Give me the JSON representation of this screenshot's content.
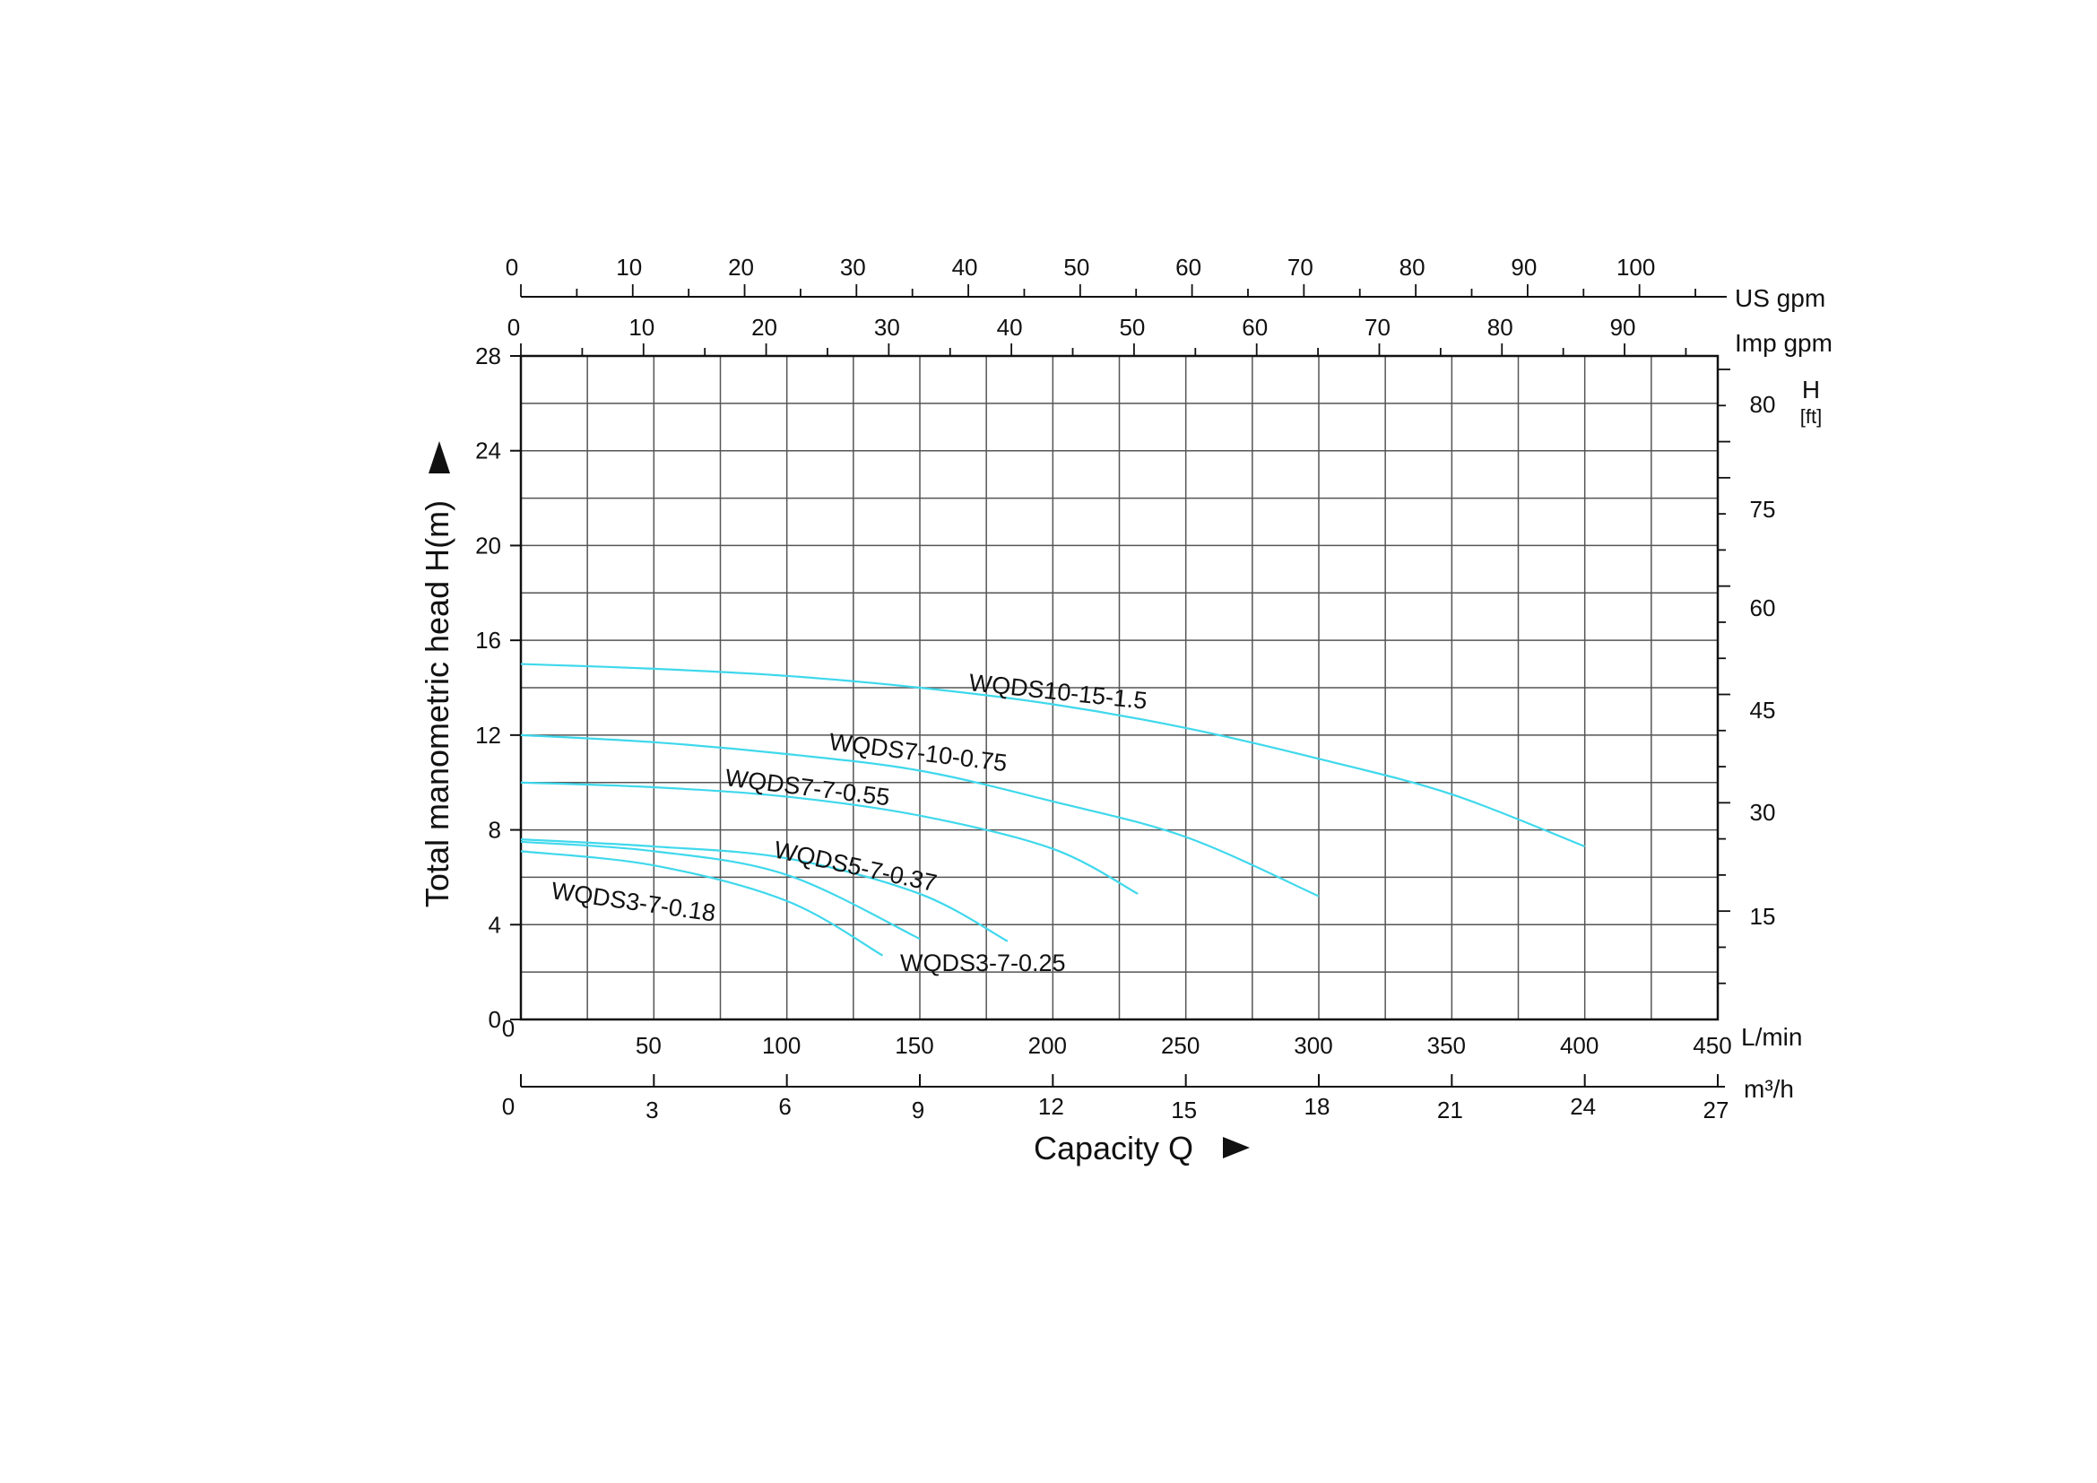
{
  "chart_data": {
    "type": "line",
    "title": "",
    "xlabel": "Capacity Q",
    "ylabel": "Total manometric head H(m)",
    "x_unit": "L/min",
    "y_unit": "m",
    "xlim": [
      0,
      450
    ],
    "ylim": [
      0,
      28
    ],
    "grid": true,
    "colors": {
      "curve": "#3fd8ec",
      "grid": "#555555",
      "axis": "#111111"
    },
    "x_ticks": [
      0,
      50,
      100,
      150,
      200,
      250,
      300,
      350,
      400,
      450
    ],
    "y_ticks": [
      0,
      4,
      8,
      12,
      16,
      20,
      24,
      28
    ],
    "secondary_axes": {
      "m3h": {
        "unit": "m³/h",
        "ticks": [
          "0",
          "3",
          "6",
          "9",
          "12",
          "15",
          "18",
          "21",
          "24",
          "27"
        ],
        "values": [
          0,
          3,
          6,
          9,
          12,
          15,
          18,
          21,
          24,
          27
        ]
      },
      "us_gpm": {
        "unit": "US gpm",
        "ticks": [
          "0",
          "10",
          "20",
          "30",
          "40",
          "50",
          "60",
          "70",
          "80",
          "90",
          "100"
        ],
        "values": [
          0,
          10,
          20,
          30,
          40,
          50,
          60,
          70,
          80,
          90,
          100
        ]
      },
      "imp_gpm": {
        "unit": "Imp gpm",
        "ticks": [
          "0",
          "10",
          "20",
          "30",
          "40",
          "50",
          "60",
          "70",
          "80",
          "90"
        ],
        "values": [
          0,
          10,
          20,
          30,
          40,
          50,
          60,
          70,
          80,
          90
        ]
      },
      "head_ft": {
        "unit_top": "H",
        "unit_bottom": "[ft]",
        "ticks": [
          "15",
          "30",
          "45",
          "60",
          "75",
          "80"
        ],
        "values": [
          15,
          30,
          45,
          60,
          75,
          80
        ]
      }
    },
    "series": [
      {
        "name": "WQDS10-15-1.5",
        "x": [
          0,
          50,
          100,
          150,
          200,
          250,
          300,
          350,
          400
        ],
        "y": [
          15.0,
          14.8,
          14.5,
          14.0,
          13.3,
          12.3,
          11.0,
          9.5,
          7.3
        ]
      },
      {
        "name": "WQDS7-10-0.75",
        "x": [
          0,
          50,
          100,
          150,
          200,
          250,
          300
        ],
        "y": [
          12.0,
          11.7,
          11.2,
          10.5,
          9.2,
          7.7,
          5.2
        ]
      },
      {
        "name": "WQDS7-7-0.55",
        "x": [
          0,
          50,
          100,
          150,
          200,
          232
        ],
        "y": [
          10.0,
          9.8,
          9.4,
          8.6,
          7.2,
          5.3
        ]
      },
      {
        "name": "WQDS5-7-0.37",
        "x": [
          0,
          50,
          100,
          150,
          183
        ],
        "y": [
          7.6,
          7.3,
          6.8,
          5.3,
          3.3
        ]
      },
      {
        "name": "WQDS3-7-0.25",
        "x": [
          0,
          50,
          100,
          150
        ],
        "y": [
          7.5,
          7.1,
          6.1,
          3.4
        ]
      },
      {
        "name": "WQDS3-7-0.18",
        "x": [
          0,
          50,
          100,
          136
        ],
        "y": [
          7.1,
          6.5,
          5.0,
          2.7
        ]
      }
    ]
  }
}
